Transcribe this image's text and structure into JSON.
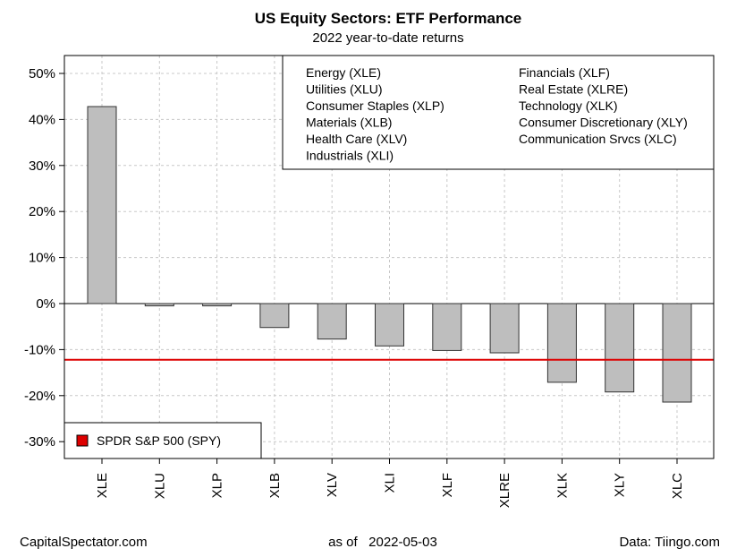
{
  "chart_data": {
    "type": "bar",
    "title": "US Equity Sectors: ETF Performance",
    "subtitle": "2022 year-to-date returns",
    "categories": [
      "XLE",
      "XLU",
      "XLP",
      "XLB",
      "XLV",
      "XLI",
      "XLF",
      "XLRE",
      "XLK",
      "XLY",
      "XLC"
    ],
    "values": [
      42.8,
      -0.5,
      -0.5,
      -5.2,
      -7.7,
      -9.2,
      -10.2,
      -10.7,
      -17.1,
      -19.2,
      -21.4
    ],
    "ylim": [
      -30,
      50
    ],
    "yticks": [
      50,
      40,
      30,
      20,
      10,
      0,
      -10,
      -20,
      -30
    ],
    "ytick_labels": [
      "50%",
      "40%",
      "30%",
      "20%",
      "10%",
      "0%",
      "-10%",
      "-20%",
      "-30%"
    ],
    "grid": true,
    "bar_color": "#bebebe",
    "reference_line": {
      "label": "SPDR S&P 500 (SPY)",
      "value": -12.2,
      "color": "#dd0000"
    },
    "legend_sectors": {
      "placement": "top-right",
      "col1": [
        "Energy (XLE)",
        "Utilities (XLU)",
        "Consumer Staples (XLP)",
        "Materials (XLB)",
        "Health Care (XLV)",
        "Industrials (XLI)"
      ],
      "col2": [
        "Financials (XLF)",
        "Real Estate (XLRE)",
        "Technology (XLK)",
        "Consumer Discretionary (XLY)",
        "Communication Srvcs (XLC)"
      ]
    },
    "legend_spy": {
      "placement": "bottom-left",
      "label": "SPDR S&P 500 (SPY)"
    }
  },
  "footer": {
    "left": "CapitalSpectator.com",
    "center": "as of   2022-05-03",
    "right": "Data: Tiingo.com"
  }
}
